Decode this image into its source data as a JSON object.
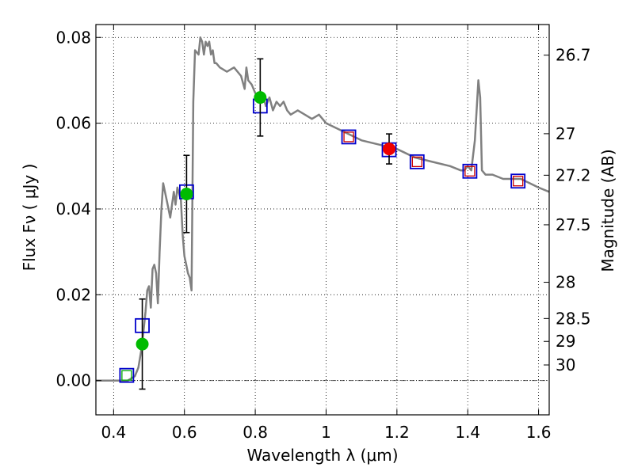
{
  "chart_data": {
    "type": "scatter",
    "xlabel": "Wavelength  λ (μm)",
    "ylabel": "Flux  Fν  ( μJy )",
    "ylabel_right": "Magnitude (AB)",
    "xlim": [
      0.35,
      1.63
    ],
    "ylim": [
      -0.008,
      0.083
    ],
    "grid": true,
    "x_ticks": [
      {
        "value": 0.4,
        "label": "0.4"
      },
      {
        "value": 0.6,
        "label": "0.6"
      },
      {
        "value": 0.8,
        "label": "0.8"
      },
      {
        "value": 1.0,
        "label": "1"
      },
      {
        "value": 1.2,
        "label": "1.2"
      },
      {
        "value": 1.4,
        "label": "1.4"
      },
      {
        "value": 1.6,
        "label": "1.6"
      }
    ],
    "y_ticks": [
      {
        "value": 0.0,
        "label": "0.00"
      },
      {
        "value": 0.02,
        "label": "0.02"
      },
      {
        "value": 0.04,
        "label": "0.04"
      },
      {
        "value": 0.06,
        "label": "0.06"
      },
      {
        "value": 0.08,
        "label": "0.08"
      }
    ],
    "right_ticks": [
      {
        "value": 26.7,
        "label": "26.7"
      },
      {
        "value": 27.0,
        "label": "27"
      },
      {
        "value": 27.2,
        "label": "27.2"
      },
      {
        "value": 27.5,
        "label": "27.5"
      },
      {
        "value": 28.0,
        "label": "28"
      },
      {
        "value": 28.5,
        "label": "28.5"
      },
      {
        "value": 29.0,
        "label": "29"
      },
      {
        "value": 30.0,
        "label": "30"
      }
    ],
    "series": [
      {
        "kind": "line",
        "color": "#808080",
        "x": [
          0.35,
          0.44,
          0.46,
          0.47,
          0.48,
          0.49,
          0.495,
          0.5,
          0.505,
          0.51,
          0.515,
          0.52,
          0.525,
          0.53,
          0.535,
          0.54,
          0.55,
          0.56,
          0.57,
          0.575,
          0.58,
          0.59,
          0.595,
          0.6,
          0.605,
          0.61,
          0.615,
          0.62,
          0.625,
          0.63,
          0.64,
          0.645,
          0.65,
          0.655,
          0.66,
          0.665,
          0.67,
          0.675,
          0.68,
          0.685,
          0.69,
          0.7,
          0.72,
          0.74,
          0.76,
          0.77,
          0.775,
          0.78,
          0.79,
          0.8,
          0.81,
          0.82,
          0.83,
          0.84,
          0.85,
          0.86,
          0.87,
          0.88,
          0.89,
          0.9,
          0.92,
          0.94,
          0.96,
          0.98,
          1.0,
          1.05,
          1.1,
          1.15,
          1.2,
          1.25,
          1.3,
          1.35,
          1.38,
          1.39,
          1.4,
          1.41,
          1.42,
          1.425,
          1.43,
          1.435,
          1.44,
          1.45,
          1.47,
          1.5,
          1.55,
          1.6,
          1.63
        ],
        "values": [
          0.0,
          0.0,
          0.001,
          0.003,
          0.008,
          0.016,
          0.021,
          0.022,
          0.017,
          0.026,
          0.027,
          0.025,
          0.018,
          0.03,
          0.04,
          0.046,
          0.042,
          0.038,
          0.044,
          0.041,
          0.045,
          0.042,
          0.034,
          0.029,
          0.027,
          0.025,
          0.024,
          0.021,
          0.065,
          0.077,
          0.076,
          0.08,
          0.079,
          0.076,
          0.079,
          0.078,
          0.079,
          0.076,
          0.077,
          0.074,
          0.074,
          0.073,
          0.072,
          0.073,
          0.071,
          0.068,
          0.073,
          0.07,
          0.069,
          0.067,
          0.066,
          0.067,
          0.064,
          0.066,
          0.063,
          0.065,
          0.064,
          0.065,
          0.063,
          0.062,
          0.063,
          0.062,
          0.061,
          0.062,
          0.06,
          0.058,
          0.056,
          0.055,
          0.054,
          0.052,
          0.051,
          0.05,
          0.049,
          0.049,
          0.05,
          0.049,
          0.056,
          0.063,
          0.07,
          0.066,
          0.049,
          0.048,
          0.048,
          0.047,
          0.047,
          0.045,
          0.044
        ]
      },
      {
        "kind": "square",
        "color": "#0000cc",
        "x": [
          0.437,
          0.481,
          0.606,
          0.814,
          1.064,
          1.178,
          1.257,
          1.406,
          1.542
        ],
        "values": [
          0.0012,
          0.0128,
          0.044,
          0.064,
          0.0568,
          0.0538,
          0.051,
          0.0488,
          0.0465
        ]
      },
      {
        "kind": "inner-square",
        "color": "#00aa00",
        "x": [
          0.437
        ],
        "values": [
          0.0012
        ]
      },
      {
        "kind": "inner-square",
        "color": "#cc0000",
        "x": [
          1.064,
          1.257,
          1.406,
          1.542
        ],
        "values": [
          0.0568,
          0.051,
          0.0488,
          0.0465
        ]
      },
      {
        "kind": "point",
        "color": "#00bb00",
        "x": [
          0.481,
          0.606,
          0.814
        ],
        "values": [
          0.0085,
          0.0435,
          0.066
        ],
        "yerr_low": [
          0.0105,
          0.009,
          0.009
        ],
        "yerr_high": [
          0.0105,
          0.009,
          0.009
        ]
      },
      {
        "kind": "point",
        "color": "#ee0000",
        "x": [
          1.178
        ],
        "values": [
          0.054
        ],
        "yerr_low": [
          0.0035
        ],
        "yerr_high": [
          0.0035
        ]
      }
    ]
  }
}
